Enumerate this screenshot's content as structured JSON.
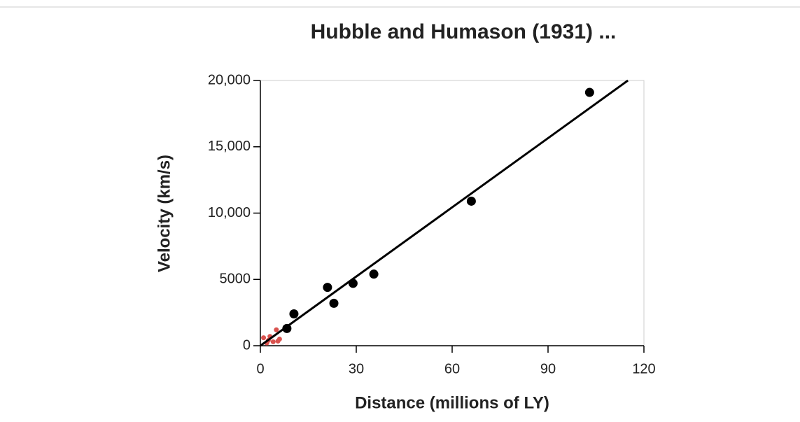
{
  "chart_data": {
    "type": "scatter",
    "title": "Hubble and Humason (1931) ...",
    "x_label": "Distance (millions of LY)",
    "y_label": "Velocity (km/s)",
    "xlim": [
      0,
      120
    ],
    "xticks": [
      0,
      30,
      60,
      90,
      120
    ],
    "ylim": [
      0,
      20000
    ],
    "yticks": [
      0,
      5000,
      {
        "value": 10000,
        "label": "10,000"
      },
      {
        "value": 15000,
        "label": "15,000"
      },
      {
        "value": 20000,
        "label": "20,000"
      }
    ],
    "series": [
      {
        "color": "#000000",
        "marker": "large",
        "x": [
          8.3,
          10.5,
          21,
          23,
          29,
          35.5,
          66,
          103
        ],
        "values": [
          1300,
          2400,
          4400,
          3200,
          4700,
          5400,
          10900,
          19100
        ]
      },
      {
        "color": "#d9534f",
        "marker": "small",
        "x": [
          1,
          2,
          2.5,
          3,
          4,
          5,
          5.5,
          6
        ],
        "values": [
          600,
          200,
          400,
          700,
          300,
          1200,
          350,
          500
        ]
      },
      {
        "color": "#000000",
        "marker": "line",
        "x": [
          0,
          115
        ],
        "values": [
          0,
          20000
        ]
      }
    ]
  }
}
